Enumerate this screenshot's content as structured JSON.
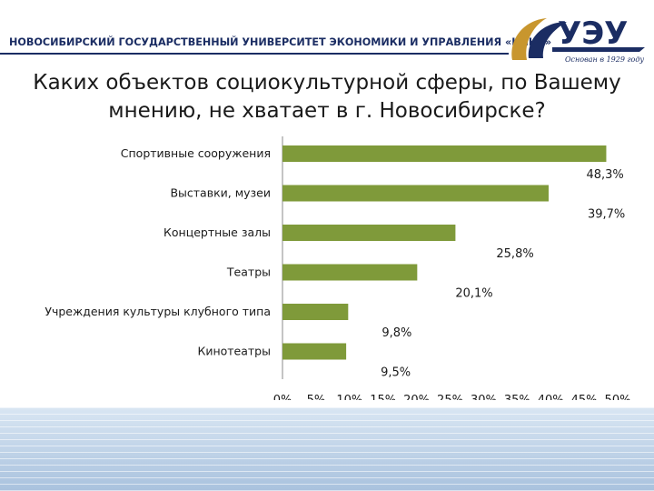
{
  "header": {
    "university_name": "НОВОСИБИРСКИЙ ГОСУДАРСТВЕННЫЙ УНИВЕРСИТЕТ ЭКОНОМИКИ И УПРАВЛЕНИЯ «НИНХ»",
    "motto": "Основан в 1929 году",
    "colors": {
      "navy": "#1b2d63",
      "gold": "#c8962e"
    }
  },
  "slide": {
    "title": "Каких объектов  социокультурной сферы, по Вашему мнению, не хватает в г. Новосибирске?"
  },
  "chart_data": {
    "type": "bar",
    "orientation": "horizontal",
    "categories": [
      "Спортивные сооружения",
      "Выставки, музеи",
      "Концертные залы",
      "Театры",
      "Учреждения культуры клубного типа",
      "Кинотеатры"
    ],
    "values": [
      48.3,
      39.7,
      25.8,
      20.1,
      9.8,
      9.5
    ],
    "data_labels": [
      "48,3%",
      "39,7%",
      "25,8%",
      "20,1%",
      "9,8%",
      "9,5%"
    ],
    "x_ticks": [
      "0%",
      "5%",
      "10%",
      "15%",
      "20%",
      "25%",
      "30%",
      "35%",
      "40%",
      "45%",
      "50%"
    ],
    "xlim": [
      0,
      50
    ],
    "grid": false,
    "bar_color": "#7f9a3a"
  }
}
